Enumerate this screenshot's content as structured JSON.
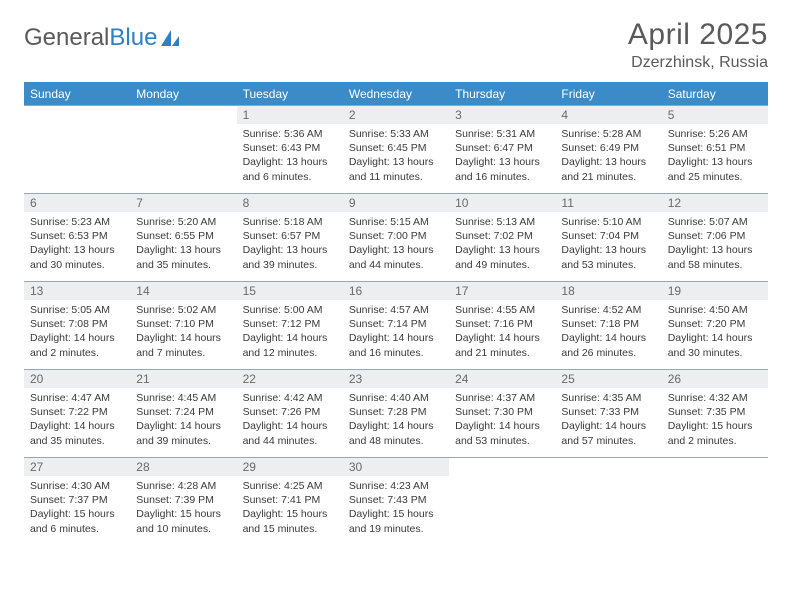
{
  "brand": {
    "part1": "General",
    "part2": "Blue"
  },
  "title": "April 2025",
  "location": "Dzerzhinsk, Russia",
  "colors": {
    "header_bg": "#3b8bc9",
    "header_text": "#ffffff",
    "daynum_bg": "#eceeef",
    "body_text": "#3a3a3a",
    "rule": "#9aa6b2",
    "logo_gray": "#5a5a5a",
    "logo_blue": "#2f7fc2"
  },
  "day_headers": [
    "Sunday",
    "Monday",
    "Tuesday",
    "Wednesday",
    "Thursday",
    "Friday",
    "Saturday"
  ],
  "weeks": [
    [
      null,
      null,
      {
        "n": "1",
        "sr": "5:36 AM",
        "ss": "6:43 PM",
        "dl": "13 hours and 6 minutes."
      },
      {
        "n": "2",
        "sr": "5:33 AM",
        "ss": "6:45 PM",
        "dl": "13 hours and 11 minutes."
      },
      {
        "n": "3",
        "sr": "5:31 AM",
        "ss": "6:47 PM",
        "dl": "13 hours and 16 minutes."
      },
      {
        "n": "4",
        "sr": "5:28 AM",
        "ss": "6:49 PM",
        "dl": "13 hours and 21 minutes."
      },
      {
        "n": "5",
        "sr": "5:26 AM",
        "ss": "6:51 PM",
        "dl": "13 hours and 25 minutes."
      }
    ],
    [
      {
        "n": "6",
        "sr": "5:23 AM",
        "ss": "6:53 PM",
        "dl": "13 hours and 30 minutes."
      },
      {
        "n": "7",
        "sr": "5:20 AM",
        "ss": "6:55 PM",
        "dl": "13 hours and 35 minutes."
      },
      {
        "n": "8",
        "sr": "5:18 AM",
        "ss": "6:57 PM",
        "dl": "13 hours and 39 minutes."
      },
      {
        "n": "9",
        "sr": "5:15 AM",
        "ss": "7:00 PM",
        "dl": "13 hours and 44 minutes."
      },
      {
        "n": "10",
        "sr": "5:13 AM",
        "ss": "7:02 PM",
        "dl": "13 hours and 49 minutes."
      },
      {
        "n": "11",
        "sr": "5:10 AM",
        "ss": "7:04 PM",
        "dl": "13 hours and 53 minutes."
      },
      {
        "n": "12",
        "sr": "5:07 AM",
        "ss": "7:06 PM",
        "dl": "13 hours and 58 minutes."
      }
    ],
    [
      {
        "n": "13",
        "sr": "5:05 AM",
        "ss": "7:08 PM",
        "dl": "14 hours and 2 minutes."
      },
      {
        "n": "14",
        "sr": "5:02 AM",
        "ss": "7:10 PM",
        "dl": "14 hours and 7 minutes."
      },
      {
        "n": "15",
        "sr": "5:00 AM",
        "ss": "7:12 PM",
        "dl": "14 hours and 12 minutes."
      },
      {
        "n": "16",
        "sr": "4:57 AM",
        "ss": "7:14 PM",
        "dl": "14 hours and 16 minutes."
      },
      {
        "n": "17",
        "sr": "4:55 AM",
        "ss": "7:16 PM",
        "dl": "14 hours and 21 minutes."
      },
      {
        "n": "18",
        "sr": "4:52 AM",
        "ss": "7:18 PM",
        "dl": "14 hours and 26 minutes."
      },
      {
        "n": "19",
        "sr": "4:50 AM",
        "ss": "7:20 PM",
        "dl": "14 hours and 30 minutes."
      }
    ],
    [
      {
        "n": "20",
        "sr": "4:47 AM",
        "ss": "7:22 PM",
        "dl": "14 hours and 35 minutes."
      },
      {
        "n": "21",
        "sr": "4:45 AM",
        "ss": "7:24 PM",
        "dl": "14 hours and 39 minutes."
      },
      {
        "n": "22",
        "sr": "4:42 AM",
        "ss": "7:26 PM",
        "dl": "14 hours and 44 minutes."
      },
      {
        "n": "23",
        "sr": "4:40 AM",
        "ss": "7:28 PM",
        "dl": "14 hours and 48 minutes."
      },
      {
        "n": "24",
        "sr": "4:37 AM",
        "ss": "7:30 PM",
        "dl": "14 hours and 53 minutes."
      },
      {
        "n": "25",
        "sr": "4:35 AM",
        "ss": "7:33 PM",
        "dl": "14 hours and 57 minutes."
      },
      {
        "n": "26",
        "sr": "4:32 AM",
        "ss": "7:35 PM",
        "dl": "15 hours and 2 minutes."
      }
    ],
    [
      {
        "n": "27",
        "sr": "4:30 AM",
        "ss": "7:37 PM",
        "dl": "15 hours and 6 minutes."
      },
      {
        "n": "28",
        "sr": "4:28 AM",
        "ss": "7:39 PM",
        "dl": "15 hours and 10 minutes."
      },
      {
        "n": "29",
        "sr": "4:25 AM",
        "ss": "7:41 PM",
        "dl": "15 hours and 15 minutes."
      },
      {
        "n": "30",
        "sr": "4:23 AM",
        "ss": "7:43 PM",
        "dl": "15 hours and 19 minutes."
      },
      null,
      null,
      null
    ]
  ],
  "labels": {
    "sunrise": "Sunrise:",
    "sunset": "Sunset:",
    "daylight": "Daylight:"
  }
}
